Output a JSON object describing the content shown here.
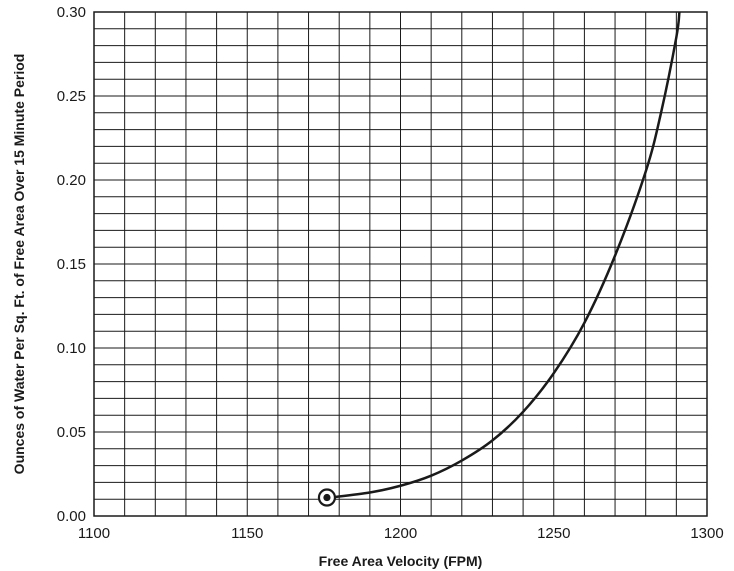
{
  "chart_data": {
    "type": "line",
    "title": "",
    "xlabel": "Free Area Velocity (FPM)",
    "ylabel": "Ounces of Water Per Sq. Ft. of Free Area Over 15 Minute Period",
    "xlim": [
      1100,
      1300
    ],
    "ylim": [
      0,
      0.3
    ],
    "x_ticks": [
      "1100",
      "1150",
      "1200",
      "1250",
      "1300"
    ],
    "y_ticks": [
      "0.00",
      "0.05",
      "0.10",
      "0.15",
      "0.20",
      "0.25",
      "0.30"
    ],
    "grid": true,
    "grid_minor": {
      "x_step": 10,
      "y_step": 0.01
    },
    "series": [
      {
        "x": [
          1177,
          1190,
          1200,
          1210,
          1220,
          1230,
          1240,
          1250,
          1260,
          1270,
          1280,
          1285,
          1290,
          1291
        ],
        "y": [
          0.011,
          0.014,
          0.018,
          0.024,
          0.033,
          0.045,
          0.062,
          0.085,
          0.115,
          0.155,
          0.205,
          0.24,
          0.285,
          0.3
        ]
      }
    ],
    "marker": {
      "x": 1176,
      "y": 0.011,
      "style": "circle-dot"
    },
    "colors": {
      "line": "#1a1a1a",
      "grid": "#1a1a1a"
    }
  }
}
